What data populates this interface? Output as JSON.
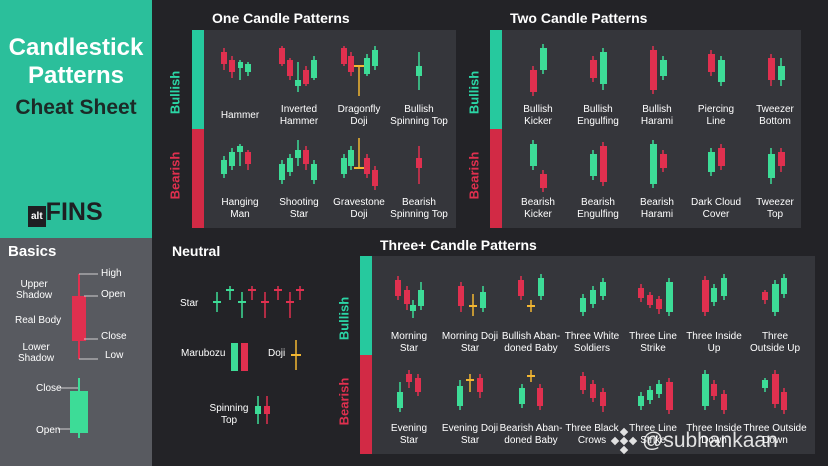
{
  "colors": {
    "bull": "#3ddc97",
    "bear": "#e0304f",
    "accent": "#26c99e",
    "dark": "#232327",
    "panel": "#35363b",
    "sidebar_top": "#2bbf9b",
    "sidebar_bottom": "#585a60",
    "doji": "#f2b632"
  },
  "title": {
    "line1": "Candlestick",
    "line2": "Patterns",
    "line3": "Cheat Sheet"
  },
  "brand": {
    "prefix": "alt",
    "name": "FINS"
  },
  "basics": {
    "title": "Basics",
    "high": "High",
    "open": "Open",
    "close": "Close",
    "low": "Low",
    "upper_shadow_1": "Upper",
    "upper_shadow_2": "Shadow",
    "real_body": "Real Body",
    "lower_shadow_1": "Lower",
    "lower_shadow_2": "Shadow",
    "close2": "Close",
    "open2": "Open"
  },
  "sections": {
    "one": "One Candle Patterns",
    "two": "Two Candle Patterns",
    "neutral": "Neutral",
    "three": "Three+ Candle Patterns"
  },
  "side": {
    "bullish": "Bullish",
    "bearish": "Bearish"
  },
  "one_bull": [
    [
      "Hammer",
      ""
    ],
    [
      "Inverted",
      "Hammer"
    ],
    [
      "Dragonfly",
      "Doji"
    ],
    [
      "Bullish",
      "Spinning Top"
    ]
  ],
  "one_bear": [
    [
      "Hanging",
      "Man"
    ],
    [
      "Shooting",
      "Star"
    ],
    [
      "Gravestone",
      "Doji"
    ],
    [
      "Bearish",
      "Spinning Top"
    ]
  ],
  "two_bull": [
    [
      "Bullish",
      "Kicker"
    ],
    [
      "Bullish",
      "Engulfing"
    ],
    [
      "Bullish",
      "Harami"
    ],
    [
      "Piercing",
      "Line"
    ],
    [
      "Tweezer",
      "Bottom"
    ]
  ],
  "two_bear": [
    [
      "Bearish",
      "Kicker"
    ],
    [
      "Bearish",
      "Engulfing"
    ],
    [
      "Bearish",
      "Harami"
    ],
    [
      "Dark Cloud",
      "Cover"
    ],
    [
      "Tweezer",
      "Top"
    ]
  ],
  "neutral": {
    "star": "Star",
    "marubozu": "Marubozu",
    "doji": "Doji",
    "spinning_1": "Spinning",
    "spinning_2": "Top"
  },
  "three_bull": [
    [
      "Morning",
      "Star"
    ],
    [
      "Morning Doji",
      "Star"
    ],
    [
      "Bullish Aban-",
      "doned Baby"
    ],
    [
      "Three White",
      "Soldiers"
    ],
    [
      "Three Line",
      "Strike"
    ],
    [
      "Three Inside",
      "Up"
    ],
    [
      "Three",
      "Outside Up"
    ]
  ],
  "three_bear": [
    [
      "Evening",
      "Star"
    ],
    [
      "Evening Doji",
      "Star"
    ],
    [
      "Bearish Aban-",
      "doned Baby"
    ],
    [
      "Three Black",
      "Crows"
    ],
    [
      "Three Line",
      "Strike"
    ],
    [
      "Three Inside",
      "Down"
    ],
    [
      "Three Outside",
      "Down"
    ]
  ],
  "watermark": "@subhankaan"
}
